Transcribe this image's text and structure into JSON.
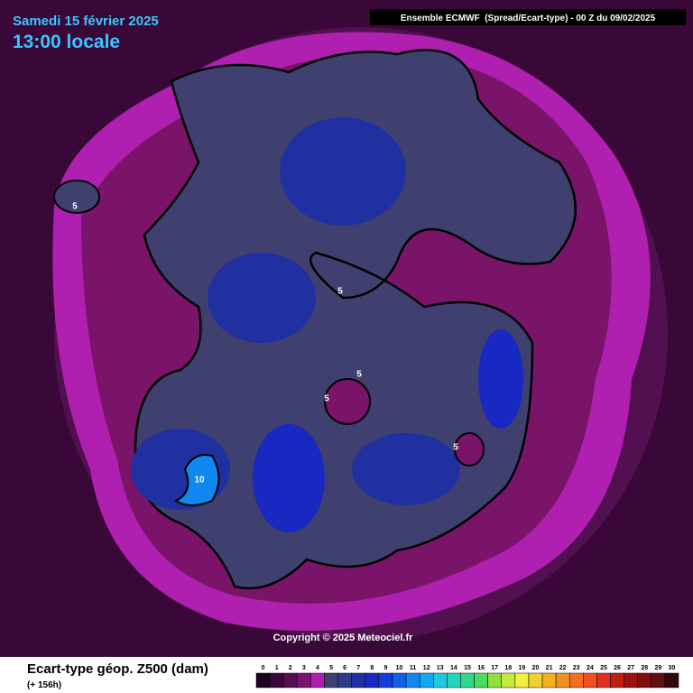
{
  "header": {
    "date": "Samedi 15 février 2025",
    "time": "13:00 locale",
    "run": "Ensemble ECMWF  (Spread/Ecart-type) - 00 Z du 09/02/2025"
  },
  "copyright": "Copyright © 2025 Meteociel.fr",
  "footer": {
    "title": "Ecart-type géop. Z500 (dam)",
    "lead": "(+ 156h)"
  },
  "contour_labels": [
    5,
    5,
    5,
    5,
    5,
    10
  ],
  "legend": {
    "ticks": [
      0,
      1,
      2,
      3,
      4,
      5,
      6,
      7,
      8,
      9,
      10,
      11,
      12,
      13,
      14,
      15,
      16,
      17,
      18,
      19,
      20,
      21,
      22,
      23,
      24,
      25,
      26,
      27,
      28,
      29,
      30
    ],
    "colors": [
      "#200020",
      "#3a0838",
      "#521050",
      "#7a1468",
      "#b020b0",
      "#404070",
      "#303c88",
      "#2030a0",
      "#1828c0",
      "#1040d8",
      "#1060e8",
      "#1088f0",
      "#10a8f0",
      "#20c8e0",
      "#20d8b8",
      "#30d890",
      "#50d860",
      "#90e040",
      "#c8e840",
      "#f0f040",
      "#f0d030",
      "#f0b020",
      "#f09020",
      "#f07020",
      "#f05020",
      "#e03020",
      "#c02010",
      "#a01010",
      "#801010",
      "#601010",
      "#300808"
    ]
  }
}
